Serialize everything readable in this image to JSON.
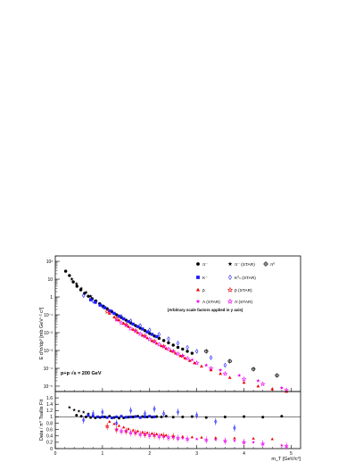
{
  "chart_data": [
    {
      "type": "scatter",
      "title": "",
      "xlabel": "m_T [GeV/c²]",
      "ylabel": "E d³σ/dp³ [mb GeV⁻² c³]",
      "yscale": "log",
      "xlim": [
        0,
        5.2
      ],
      "ylim": [
        5e-06,
        200
      ],
      "x_ticks": [
        "0",
        "1",
        "2",
        "3",
        "4",
        "5"
      ],
      "y_ticks": [
        "10⁻⁵",
        "10⁻⁴",
        "10⁻³",
        "10⁻²",
        "10⁻¹",
        "1",
        "10",
        "10²"
      ],
      "grid": false,
      "legend_position": "top-right",
      "annotation": "p+p √s = 200 GeV",
      "note": "(Arbitrary scale factors applied in y axis)",
      "series": [
        {
          "name": "π⁻",
          "marker": "circle",
          "color": "#000000",
          "x": [
            0.22,
            0.3,
            0.38,
            0.46,
            0.54,
            0.62,
            0.7,
            0.78,
            0.86,
            0.94,
            1.02,
            1.1,
            1.2,
            1.3,
            1.4,
            1.5,
            1.6,
            1.7,
            1.8,
            1.9,
            2.0,
            2.1,
            2.2,
            2.3,
            2.4,
            2.5,
            2.6,
            2.7,
            2.8,
            2.9
          ],
          "y": [
            28,
            16,
            7,
            4,
            2.5,
            1.6,
            1.1,
            0.8,
            0.6,
            0.42,
            0.3,
            0.22,
            0.15,
            0.1,
            0.07,
            0.05,
            0.035,
            0.025,
            0.018,
            0.013,
            0.009,
            0.0065,
            0.0048,
            0.0036,
            0.0027,
            0.002,
            0.0015,
            0.0012,
            0.0009,
            0.0007
          ]
        },
        {
          "name": "π⁻ (STAR)",
          "marker": "star",
          "color": "#000000",
          "x": [
            0.35,
            0.45,
            0.55,
            0.65,
            0.75
          ],
          "y": [
            10,
            5.5,
            3,
            1.8,
            1.1
          ]
        },
        {
          "name": "π⁰",
          "marker": "circle-open-cross",
          "color": "#000000",
          "x": [
            3.2,
            3.7,
            4.2,
            4.7
          ],
          "y": [
            0.0009,
            0.00025,
            9e-05,
            4e-05
          ]
        },
        {
          "name": "K⁻",
          "marker": "square",
          "color": "#1a1aff",
          "x": [
            0.75,
            0.85,
            0.95,
            1.05,
            1.15,
            1.25,
            1.35,
            1.45,
            1.55,
            1.65,
            1.75,
            1.85,
            1.95,
            2.05,
            2.15
          ],
          "y": [
            0.7,
            0.5,
            0.35,
            0.25,
            0.17,
            0.12,
            0.085,
            0.06,
            0.042,
            0.03,
            0.022,
            0.016,
            0.011,
            0.008,
            0.006
          ]
        },
        {
          "name": "K⁰ₛ (STAR)",
          "marker": "diamond-open",
          "color": "#1a1aff",
          "x": [
            0.6,
            0.8,
            1.0,
            1.2,
            1.4,
            1.6,
            1.8,
            2.0,
            2.2,
            2.4,
            2.6,
            2.8,
            3.0,
            3.3,
            3.6
          ],
          "y": [
            1.2,
            0.6,
            0.3,
            0.15,
            0.08,
            0.045,
            0.025,
            0.014,
            0.008,
            0.0045,
            0.0026,
            0.0015,
            0.0009,
            0.0004,
            0.00015
          ]
        },
        {
          "name": "p̄",
          "marker": "triangle",
          "color": "#ee0000",
          "x": [
            1.15,
            1.25,
            1.35,
            1.45,
            1.55,
            1.65,
            1.75,
            1.85,
            1.95,
            2.05,
            2.15,
            2.25,
            2.35,
            2.45,
            2.55,
            2.65,
            2.75,
            2.85,
            2.95,
            3.1,
            3.3,
            3.5,
            3.7,
            4.0,
            4.3,
            4.6,
            4.9
          ],
          "y": [
            0.12,
            0.075,
            0.05,
            0.033,
            0.022,
            0.015,
            0.01,
            0.007,
            0.005,
            0.0035,
            0.0025,
            0.0018,
            0.0013,
            0.00095,
            0.0007,
            0.0005,
            0.00037,
            0.00027,
            0.0002,
            0.00013,
            8e-05,
            5e-05,
            3e-05,
            1.6e-05,
            1e-05,
            7e-06,
            5e-06
          ]
        },
        {
          "name": "p̄ (STAR)",
          "marker": "star-open",
          "color": "#ee0000",
          "x": [
            1.1,
            1.3,
            1.5,
            1.7,
            1.9,
            2.1,
            2.3,
            2.5,
            2.7
          ],
          "y": [
            0.15,
            0.06,
            0.028,
            0.013,
            0.0065,
            0.0033,
            0.0017,
            0.0009,
            0.0005
          ]
        },
        {
          "name": "Λ (STAR)",
          "marker": "star",
          "color": "#ee00ee",
          "x": [
            1.3,
            1.5,
            1.7,
            1.9,
            2.1,
            2.3,
            2.5,
            2.7,
            2.9,
            3.2,
            3.5,
            3.9,
            4.3,
            4.8
          ],
          "y": [
            0.05,
            0.025,
            0.012,
            0.006,
            0.003,
            0.0016,
            0.0009,
            0.0005,
            0.0003,
            0.00015,
            8e-05,
            4e-05,
            2e-05,
            8e-06
          ]
        },
        {
          "name": "Λ̄ (STAR)",
          "marker": "star-open",
          "color": "#ee00ee",
          "x": [
            1.4,
            1.6,
            1.8,
            2.0,
            2.2,
            2.4,
            2.6,
            2.8,
            3.0,
            3.3,
            3.6,
            4.0,
            4.4,
            4.9
          ],
          "y": [
            0.035,
            0.017,
            0.0085,
            0.0043,
            0.0022,
            0.0012,
            0.00065,
            0.00036,
            0.0002,
            0.0001,
            5e-05,
            2.5e-05,
            1.3e-05,
            6e-06
          ]
        }
      ]
    },
    {
      "type": "scatter",
      "title": "",
      "xlabel": "m_T [GeV/c²]",
      "ylabel": "Data / π⁰ Tsallis Fit",
      "xlim": [
        0,
        5.2
      ],
      "ylim": [
        0,
        1.8
      ],
      "x_ticks": [
        "0",
        "1",
        "2",
        "3",
        "4",
        "5"
      ],
      "y_ticks": [
        "0",
        "0.2",
        "0.4",
        "0.6",
        "0.8",
        "1",
        "1.2",
        "1.4",
        "1.6"
      ],
      "reference_line": 1,
      "series": [
        {
          "name": "π⁻",
          "x": [
            0.45,
            0.55,
            0.65,
            0.75,
            0.85,
            0.95,
            1.05,
            1.15,
            1.25,
            1.35,
            1.45,
            1.55,
            1.65,
            1.75,
            1.85,
            1.95,
            2.05,
            2.15,
            2.25,
            2.35,
            2.5,
            2.7,
            2.9,
            3.2,
            3.6,
            4.0,
            4.4,
            4.8
          ],
          "y": [
            1.05,
            1.02,
            1.0,
            0.98,
            0.97,
            0.98,
            1.0,
            1.02,
            0.98,
            0.96,
            0.97,
            0.99,
            1.0,
            1.02,
            1.01,
            1.0,
            0.99,
            1.01,
            1.0,
            1.02,
            0.99,
            1.0,
            1.01,
            0.98,
            1.0,
            1.01,
            0.99,
            1.02
          ]
        },
        {
          "name": "π⁻ (STAR)",
          "x": [
            0.3,
            0.4,
            0.5,
            0.6,
            0.7
          ],
          "y": [
            1.3,
            1.22,
            1.18,
            1.15,
            1.1
          ]
        },
        {
          "name": "K⁻",
          "x": [
            0.7,
            0.8,
            0.9,
            1.0,
            1.1,
            1.2,
            1.3,
            1.4,
            1.5,
            1.6,
            1.7,
            1.8,
            1.9,
            2.0,
            2.1
          ],
          "y": [
            1.05,
            1.02,
            1.0,
            1.0,
            0.98,
            0.97,
            1.0,
            1.02,
            0.99,
            1.0,
            1.01,
            0.98,
            1.0,
            1.02,
            1.0
          ]
        },
        {
          "name": "K⁰ₛ (STAR)",
          "x": [
            0.6,
            0.8,
            1.0,
            1.3,
            1.6,
            1.9,
            2.1,
            2.3,
            2.6,
            3.0,
            3.4,
            3.8
          ],
          "y": [
            0.9,
            1.1,
            1.15,
            0.8,
            1.2,
            1.1,
            1.25,
            1.1,
            1.15,
            1.05,
            0.85,
            0.65
          ]
        },
        {
          "name": "p̄",
          "x": [
            1.15,
            1.25,
            1.35,
            1.45,
            1.55,
            1.65,
            1.75,
            1.85,
            1.95,
            2.05,
            2.15,
            2.25,
            2.35,
            2.5,
            2.7,
            2.9,
            3.1,
            3.4,
            3.8,
            4.2,
            4.6
          ],
          "y": [
            0.85,
            0.78,
            0.72,
            0.67,
            0.62,
            0.58,
            0.55,
            0.52,
            0.5,
            0.48,
            0.46,
            0.44,
            0.42,
            0.4,
            0.38,
            0.36,
            0.35,
            0.34,
            0.33,
            0.32,
            0.3
          ]
        },
        {
          "name": "p̄ (STAR)",
          "x": [
            1.1,
            1.3,
            1.5,
            1.7,
            1.9,
            2.1,
            2.3,
            2.5
          ],
          "y": [
            0.7,
            0.6,
            0.55,
            0.5,
            0.45,
            0.42,
            0.4,
            0.38
          ]
        },
        {
          "name": "Λ (STAR)",
          "x": [
            1.3,
            1.5,
            1.7,
            1.9,
            2.1,
            2.3,
            2.5,
            2.7,
            3.0,
            3.4,
            3.8,
            4.2,
            4.8
          ],
          "y": [
            0.6,
            0.55,
            0.5,
            0.45,
            0.42,
            0.38,
            0.36,
            0.33,
            0.3,
            0.28,
            0.25,
            0.2,
            0.1
          ]
        },
        {
          "name": "Λ̄ (STAR)",
          "x": [
            1.4,
            1.6,
            1.8,
            2.0,
            2.2,
            2.4,
            2.6,
            2.8,
            3.2,
            3.6,
            4.0,
            4.4,
            4.9
          ],
          "y": [
            0.55,
            0.5,
            0.45,
            0.42,
            0.38,
            0.35,
            0.33,
            0.3,
            0.27,
            0.24,
            0.2,
            0.15,
            0.08
          ]
        }
      ]
    }
  ]
}
